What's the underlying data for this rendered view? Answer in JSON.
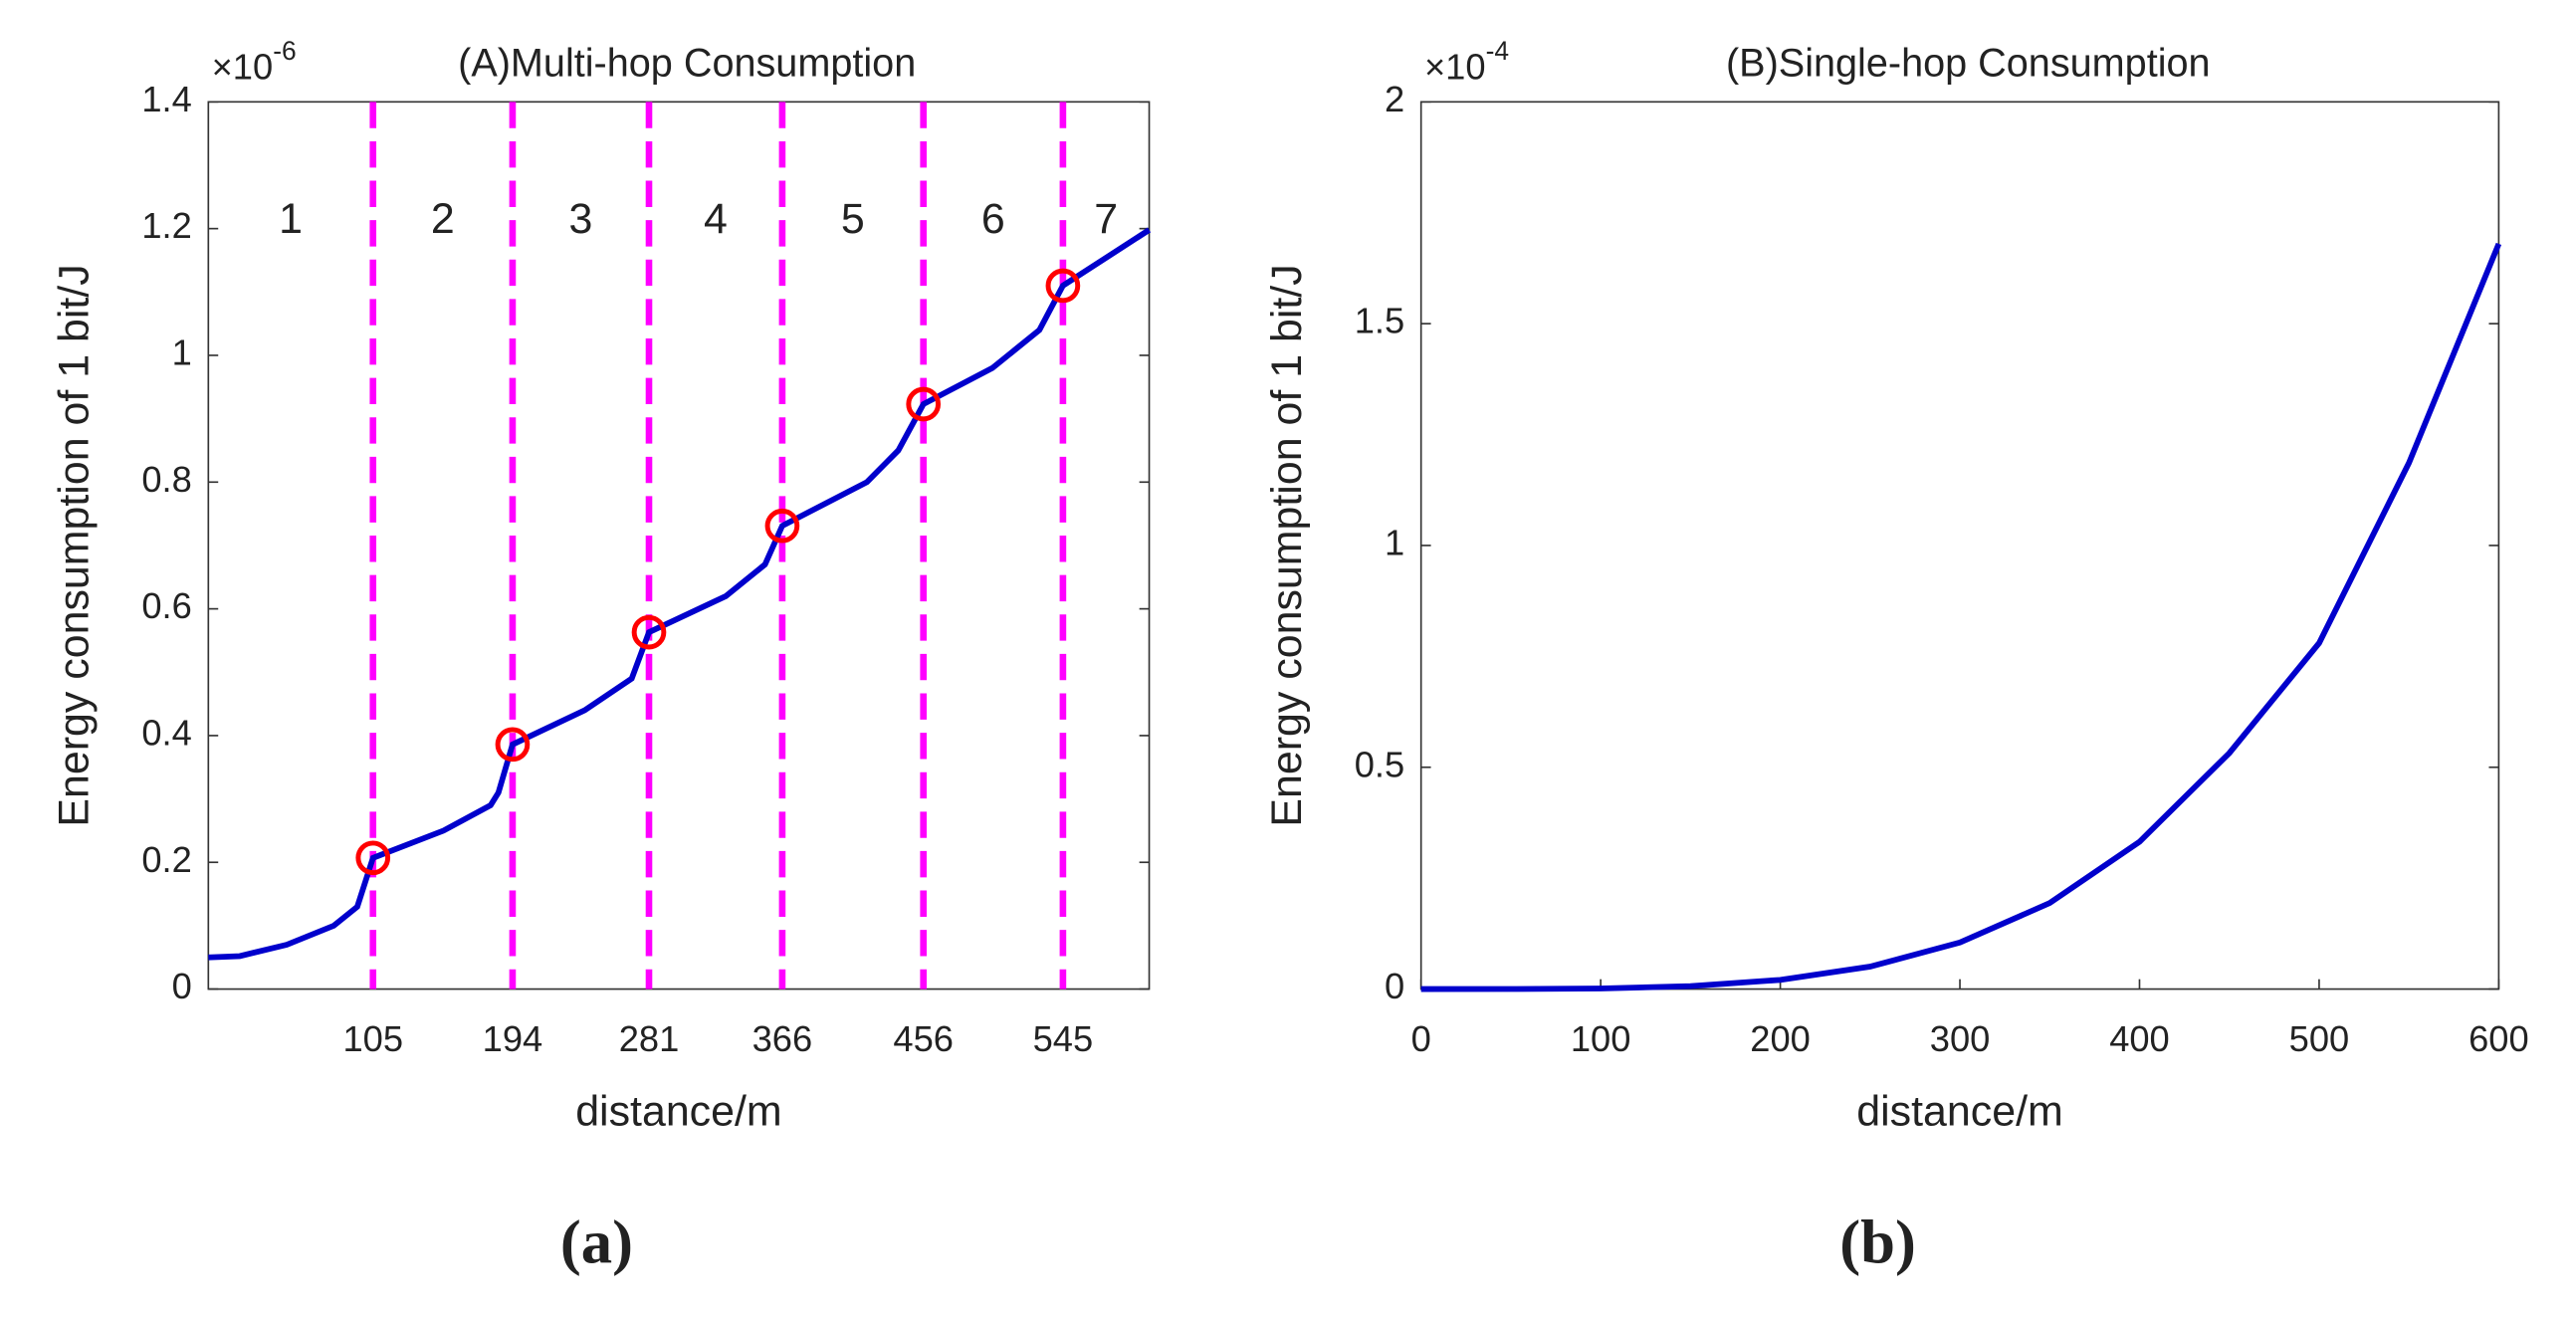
{
  "chart_data": [
    {
      "type": "line",
      "title": "(A)Multi-hop Consumption",
      "xlabel": "distance/m",
      "ylabel": "Energy consumption of 1 bit/J",
      "y_multiplier": {
        "base": "×10",
        "exponent": "-6"
      },
      "caption": "(a)",
      "x": [
        0,
        20,
        50,
        80,
        95,
        105,
        150,
        180,
        185,
        194,
        240,
        270,
        281,
        330,
        355,
        366,
        420,
        440,
        456,
        500,
        530,
        545,
        600
      ],
      "values": [
        0.05,
        0.052,
        0.07,
        0.1,
        0.13,
        0.207,
        0.25,
        0.29,
        0.31,
        0.386,
        0.44,
        0.49,
        0.563,
        0.62,
        0.67,
        0.731,
        0.8,
        0.85,
        0.923,
        0.98,
        1.04,
        1.11,
        1.198
      ],
      "color": "#0000cc",
      "markers": {
        "x": [
          105,
          194,
          281,
          366,
          456,
          545
        ],
        "values": [
          0.207,
          0.386,
          0.563,
          0.731,
          0.923,
          1.11
        ],
        "color": "#ff0000"
      },
      "vlines_color": "#ff00ff",
      "region_labels": [
        "1",
        "2",
        "3",
        "4",
        "5",
        "6",
        "7"
      ],
      "xlim": [
        0,
        600
      ],
      "xticks": [
        105,
        194,
        281,
        366,
        456,
        545
      ],
      "ylim": [
        0,
        1.4
      ],
      "yticks": [
        0,
        0.2,
        0.4,
        0.6,
        0.8,
        1,
        1.2,
        1.4
      ],
      "grid": false
    },
    {
      "type": "line",
      "title": "(B)Single-hop Consumption",
      "xlabel": "distance/m",
      "ylabel": "Energy consumption of 1 bit/J",
      "y_multiplier": {
        "base": "×10",
        "exponent": "-4"
      },
      "caption": "(b)",
      "x": [
        0,
        50,
        100,
        150,
        200,
        250,
        300,
        350,
        400,
        450,
        500,
        550,
        600
      ],
      "values": [
        0,
        0.0001,
        0.0013,
        0.0066,
        0.0207,
        0.0506,
        0.105,
        0.194,
        0.332,
        0.532,
        0.78,
        1.186,
        1.68
      ],
      "color": "#0000cc",
      "xlim": [
        0,
        600
      ],
      "xticks": [
        0,
        100,
        200,
        300,
        400,
        500,
        600
      ],
      "ylim": [
        0,
        2
      ],
      "yticks": [
        0,
        0.5,
        1,
        1.5,
        2
      ],
      "grid": false
    }
  ]
}
